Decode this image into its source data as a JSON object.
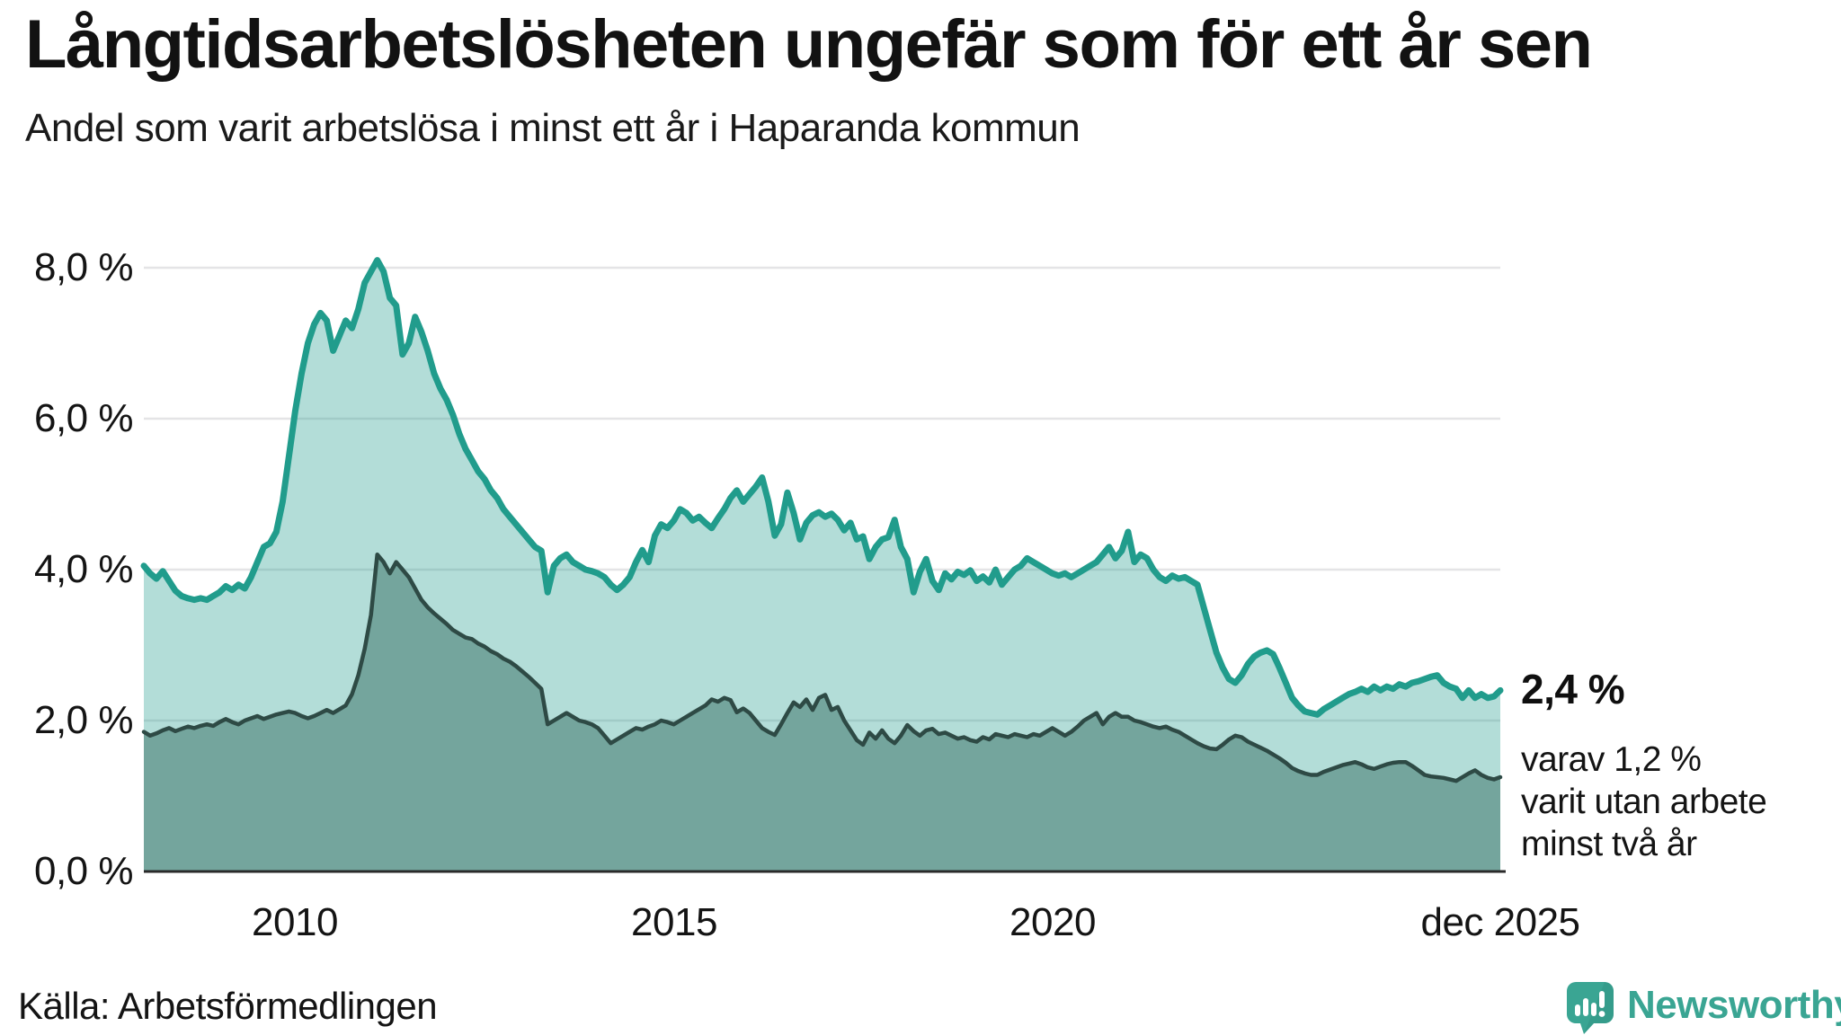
{
  "header": {
    "title": "Långtidsarbetslösheten ungefär som för ett år sen",
    "subtitle": "Andel som varit arbetslösa i minst ett år i Haparanda kommun"
  },
  "annotation": {
    "value_label": "2,4 %",
    "note_lines": [
      "varav 1,2 %",
      "varit utan arbete",
      "minst två år"
    ]
  },
  "footer": {
    "source": "Källa: Arbetsförmedlingen",
    "brand": "Newsworthy"
  },
  "colors": {
    "accent_teal": "#219c8c",
    "area_light_fill": "rgba(33,156,140,0.34)",
    "dark_line": "#2e4a45",
    "area_dark_fill": "#74a59d",
    "gridline": "#e4e4e6",
    "axis": "#2a2a2a",
    "brand": "#3aa593",
    "brand_shade": "#2e8b7f",
    "text": "#141414"
  },
  "chart_data": {
    "type": "area",
    "title": "Långtidsarbetslösheten ungefär som för ett år sen",
    "subtitle": "Andel som varit arbetslösa i minst ett år i Haparanda kommun",
    "unit": "%",
    "interval": "monthly",
    "x_start": "2008-01",
    "x_end": "2025-12",
    "ylim": [
      0,
      8.5
    ],
    "grid": true,
    "legend_position": "none",
    "y_ticks": [
      {
        "value": 0,
        "label": "0,0 %"
      },
      {
        "value": 2,
        "label": "2,0 %"
      },
      {
        "value": 4,
        "label": "4,0 %"
      },
      {
        "value": 6,
        "label": "6,0 %"
      },
      {
        "value": 8,
        "label": "8,0 %"
      }
    ],
    "x_ticks": [
      {
        "month_index": 24,
        "label": "2010"
      },
      {
        "month_index": 84,
        "label": "2015"
      },
      {
        "month_index": 144,
        "label": "2020"
      },
      {
        "month_index": 215,
        "label": "dec 2025"
      }
    ],
    "end_labels": {
      "total": "2,4 %",
      "two_years": "1,2 %"
    },
    "series": [
      {
        "name": "Arbetslösa minst ett år",
        "line_color": "#219c8c",
        "fill_color": "rgba(33,156,140,0.34)",
        "line_width": 7,
        "values": [
          4.05,
          3.95,
          3.88,
          3.98,
          3.85,
          3.72,
          3.65,
          3.62,
          3.6,
          3.62,
          3.6,
          3.65,
          3.7,
          3.78,
          3.73,
          3.8,
          3.75,
          3.9,
          4.1,
          4.3,
          4.35,
          4.5,
          4.9,
          5.5,
          6.1,
          6.6,
          7.0,
          7.25,
          7.4,
          7.3,
          6.9,
          7.1,
          7.3,
          7.2,
          7.45,
          7.8,
          7.95,
          8.1,
          7.95,
          7.6,
          7.5,
          6.85,
          7.0,
          7.35,
          7.15,
          6.9,
          6.6,
          6.4,
          6.25,
          6.05,
          5.8,
          5.6,
          5.45,
          5.3,
          5.2,
          5.05,
          4.95,
          4.8,
          4.7,
          4.6,
          4.5,
          4.4,
          4.3,
          4.25,
          3.7,
          4.05,
          4.15,
          4.2,
          4.1,
          4.05,
          4.0,
          3.98,
          3.95,
          3.9,
          3.8,
          3.73,
          3.8,
          3.9,
          4.1,
          4.26,
          4.1,
          4.45,
          4.6,
          4.55,
          4.65,
          4.8,
          4.75,
          4.65,
          4.7,
          4.62,
          4.55,
          4.68,
          4.8,
          4.95,
          5.05,
          4.9,
          5.0,
          5.1,
          5.22,
          4.9,
          4.45,
          4.6,
          5.02,
          4.75,
          4.4,
          4.62,
          4.72,
          4.76,
          4.7,
          4.74,
          4.66,
          4.52,
          4.62,
          4.4,
          4.44,
          4.14,
          4.3,
          4.4,
          4.43,
          4.66,
          4.3,
          4.14,
          3.7,
          3.97,
          4.14,
          3.85,
          3.73,
          3.95,
          3.87,
          3.97,
          3.93,
          3.99,
          3.85,
          3.91,
          3.83,
          4.0,
          3.8,
          3.9,
          4.0,
          4.05,
          4.15,
          4.1,
          4.05,
          4.0,
          3.95,
          3.92,
          3.95,
          3.9,
          3.95,
          4.0,
          4.05,
          4.1,
          4.2,
          4.3,
          4.15,
          4.25,
          4.5,
          4.1,
          4.2,
          4.15,
          4.0,
          3.9,
          3.85,
          3.92,
          3.88,
          3.9,
          3.85,
          3.8,
          3.5,
          3.2,
          2.9,
          2.7,
          2.55,
          2.5,
          2.6,
          2.75,
          2.85,
          2.9,
          2.93,
          2.88,
          2.7,
          2.5,
          2.3,
          2.2,
          2.12,
          2.1,
          2.08,
          2.15,
          2.2,
          2.25,
          2.3,
          2.35,
          2.38,
          2.42,
          2.38,
          2.45,
          2.4,
          2.45,
          2.42,
          2.48,
          2.45,
          2.5,
          2.52,
          2.55,
          2.58,
          2.6,
          2.5,
          2.45,
          2.42,
          2.3,
          2.4,
          2.3,
          2.35,
          2.3,
          2.32,
          2.4
        ]
      },
      {
        "name": "Arbetslösa minst två år",
        "line_color": "#2e4a45",
        "fill_color": "#74a59d",
        "line_width": 4.5,
        "values": [
          1.85,
          1.8,
          1.83,
          1.87,
          1.9,
          1.86,
          1.89,
          1.92,
          1.9,
          1.93,
          1.95,
          1.93,
          1.98,
          2.02,
          1.98,
          1.95,
          2.0,
          2.03,
          2.06,
          2.02,
          2.05,
          2.08,
          2.1,
          2.12,
          2.1,
          2.06,
          2.03,
          2.06,
          2.1,
          2.14,
          2.1,
          2.15,
          2.2,
          2.35,
          2.6,
          2.95,
          3.4,
          4.2,
          4.1,
          3.95,
          4.1,
          4.0,
          3.9,
          3.75,
          3.6,
          3.5,
          3.42,
          3.35,
          3.28,
          3.2,
          3.15,
          3.1,
          3.08,
          3.02,
          2.98,
          2.92,
          2.88,
          2.82,
          2.78,
          2.72,
          2.65,
          2.58,
          2.5,
          2.42,
          1.95,
          2.0,
          2.05,
          2.1,
          2.05,
          2.0,
          1.98,
          1.95,
          1.9,
          1.8,
          1.7,
          1.75,
          1.8,
          1.85,
          1.9,
          1.88,
          1.92,
          1.95,
          2.0,
          1.98,
          1.95,
          2.0,
          2.05,
          2.1,
          2.15,
          2.2,
          2.28,
          2.25,
          2.3,
          2.27,
          2.11,
          2.16,
          2.1,
          2.0,
          1.9,
          1.85,
          1.81,
          1.95,
          2.1,
          2.24,
          2.18,
          2.28,
          2.14,
          2.3,
          2.34,
          2.14,
          2.18,
          2.0,
          1.87,
          1.74,
          1.68,
          1.84,
          1.76,
          1.87,
          1.76,
          1.7,
          1.8,
          1.94,
          1.86,
          1.8,
          1.87,
          1.89,
          1.82,
          1.84,
          1.8,
          1.76,
          1.78,
          1.74,
          1.72,
          1.78,
          1.75,
          1.82,
          1.8,
          1.78,
          1.82,
          1.8,
          1.78,
          1.82,
          1.8,
          1.85,
          1.9,
          1.85,
          1.8,
          1.85,
          1.92,
          2.0,
          2.05,
          2.1,
          1.95,
          2.05,
          2.1,
          2.05,
          2.05,
          2.0,
          1.98,
          1.95,
          1.92,
          1.9,
          1.92,
          1.88,
          1.85,
          1.8,
          1.75,
          1.7,
          1.66,
          1.63,
          1.62,
          1.68,
          1.75,
          1.8,
          1.78,
          1.72,
          1.68,
          1.64,
          1.6,
          1.55,
          1.5,
          1.44,
          1.37,
          1.33,
          1.3,
          1.28,
          1.28,
          1.32,
          1.35,
          1.38,
          1.41,
          1.43,
          1.45,
          1.42,
          1.38,
          1.36,
          1.39,
          1.42,
          1.44,
          1.45,
          1.45,
          1.4,
          1.34,
          1.28,
          1.26,
          1.25,
          1.24,
          1.22,
          1.2,
          1.25,
          1.3,
          1.34,
          1.28,
          1.24,
          1.22,
          1.25
        ]
      }
    ]
  }
}
